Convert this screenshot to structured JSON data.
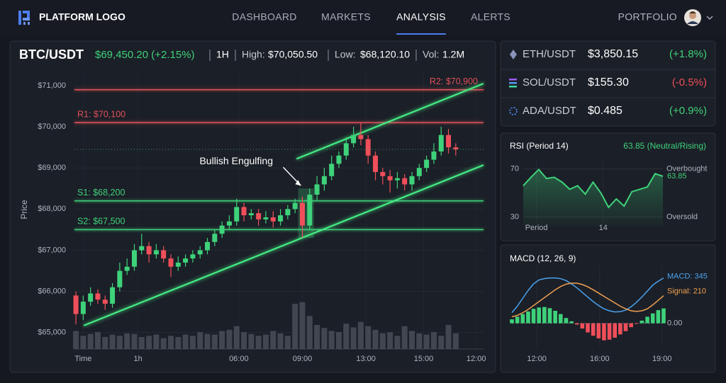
{
  "nav": {
    "logo": "PLATFORM LOGO",
    "items": [
      "DASHBOARD",
      "MARKETS",
      "ANALYSIS",
      "ALERTS"
    ],
    "active_index": 2,
    "portfolio": "PORTFOLIO"
  },
  "header": {
    "pair": "BTC/USDT",
    "price": "$69,450.20 (+2.15%)",
    "interval": "1H",
    "high_label": "High:",
    "high": "$70,050.50",
    "low_label": "Low:",
    "low": "$68,120.10",
    "vol_label": "Vol:",
    "vol": "1.2M"
  },
  "tickers": [
    {
      "pair": "ETH/USDT",
      "price": "$3,850.15",
      "change": "(+1.8%)",
      "trend": "up"
    },
    {
      "pair": "SOL/USDT",
      "price": "$155.30",
      "change": "(-0.5%)",
      "trend": "down"
    },
    {
      "pair": "ADA/USDT",
      "price": "$0.485",
      "change": "(+0.9%)",
      "trend": "up"
    }
  ],
  "chart_data": [
    {
      "type": "candlestick",
      "y_label": "Price",
      "grid": true,
      "current_price_line": true,
      "up_color": "#3ed27a",
      "down_color": "#ef4f5a",
      "volume_color": "#4b505d",
      "xlim": [
        -0.2,
        55.8
      ],
      "ylim": [
        64600,
        71360
      ],
      "volume_ylim": [
        0,
        100
      ],
      "xticks": [
        {
          "value": 1,
          "label": "Time"
        },
        {
          "value": 8.5,
          "label": "1h"
        },
        {
          "value": 22.3,
          "label": "06:00"
        },
        {
          "value": 31,
          "label": "09:00"
        },
        {
          "value": 39.7,
          "label": "13:00"
        },
        {
          "value": 47.6,
          "label": "15:00"
        },
        {
          "value": 54.8,
          "label": "12:00"
        }
      ],
      "yticks": [
        {
          "value": 65000,
          "label": "$65,000"
        },
        {
          "value": 66000,
          "label": "$66,000"
        },
        {
          "value": 67000,
          "label": "$67,000"
        },
        {
          "value": 68000,
          "label": "$68,000"
        },
        {
          "value": 69000,
          "label": "$69,000"
        },
        {
          "value": 70000,
          "label": "$70,000"
        },
        {
          "value": 71000,
          "label": "$71,000"
        }
      ],
      "open": [
        65900,
        65450,
        65750,
        65950,
        65800,
        65700,
        66100,
        66500,
        66600,
        67000,
        67100,
        66900,
        67000,
        66800,
        66600,
        66700,
        66800,
        66900,
        67000,
        67200,
        67400,
        67600,
        67700,
        68050,
        67850,
        67900,
        67750,
        67800,
        67700,
        67850,
        68000,
        68150,
        67600,
        68350,
        68600,
        68800,
        69100,
        69300,
        69600,
        69800,
        69700,
        69300,
        68900,
        68800,
        68700,
        68750,
        68600,
        68800,
        69000,
        69200,
        69400,
        69800,
        69500
      ],
      "high": [
        66000,
        65900,
        66100,
        66050,
        65900,
        66200,
        66700,
        66800,
        67150,
        67400,
        67200,
        67150,
        67100,
        66900,
        66850,
        66900,
        67000,
        67100,
        67300,
        67500,
        67700,
        67850,
        68250,
        68150,
        68000,
        68000,
        67950,
        67950,
        68000,
        68100,
        68250,
        68300,
        68500,
        68800,
        69000,
        69300,
        69400,
        69750,
        70000,
        70100,
        69800,
        69400,
        69000,
        68950,
        68900,
        68850,
        68900,
        69100,
        69300,
        69600,
        70000,
        69950,
        69600
      ],
      "low": [
        65200,
        65300,
        65650,
        65700,
        65550,
        65600,
        66000,
        66400,
        66500,
        66900,
        66700,
        66800,
        66700,
        66350,
        66500,
        66600,
        66700,
        66800,
        66900,
        67100,
        67300,
        67500,
        67600,
        67700,
        67750,
        67600,
        67650,
        67550,
        67600,
        67750,
        67900,
        67300,
        67500,
        68200,
        68450,
        68700,
        69000,
        69200,
        69500,
        69550,
        69100,
        68700,
        68600,
        68400,
        68500,
        68450,
        68450,
        68700,
        68900,
        69100,
        69300,
        69350,
        69300
      ],
      "close": [
        65450,
        65750,
        65950,
        65800,
        65700,
        66100,
        66500,
        66600,
        67000,
        67100,
        66900,
        67000,
        66800,
        66600,
        66700,
        66800,
        66900,
        67000,
        67200,
        67400,
        67600,
        67700,
        68050,
        67850,
        67900,
        67750,
        67800,
        67700,
        67850,
        68000,
        68150,
        67600,
        68350,
        68600,
        68800,
        69100,
        69300,
        69600,
        69800,
        69700,
        69300,
        68900,
        68800,
        68700,
        68750,
        68600,
        68800,
        69000,
        69200,
        69400,
        69800,
        69500,
        69450
      ],
      "volume": [
        30,
        22,
        25,
        28,
        20,
        24,
        22,
        26,
        25,
        20,
        22,
        24,
        18,
        22,
        20,
        24,
        22,
        28,
        25,
        24,
        30,
        32,
        38,
        28,
        25,
        22,
        24,
        30,
        26,
        22,
        75,
        78,
        55,
        40,
        35,
        30,
        28,
        42,
        36,
        45,
        38,
        32,
        26,
        28,
        22,
        38,
        30,
        26,
        24,
        28,
        22,
        40,
        26
      ],
      "levels": [
        {
          "label": "R2: $70,900",
          "value": 70900,
          "color": "#e0505a",
          "label_side": "right"
        },
        {
          "label": "R1: $70,100",
          "value": 70100,
          "color": "#e0505a",
          "label_side": "left"
        },
        {
          "label": "S1: $68,200",
          "value": 68200,
          "color": "#3ed27a",
          "label_side": "left"
        },
        {
          "label": "S2: $67,500",
          "value": 67500,
          "color": "#3ed27a",
          "label_side": "left"
        }
      ],
      "trendlines": [
        {
          "x": [
            1.07,
            55.8
          ],
          "y": [
            65170,
            69070
          ],
          "color": "#45ec84"
        },
        {
          "x": [
            30.2,
            55.8
          ],
          "y": [
            69220,
            71050
          ],
          "color": "#45ec84"
        }
      ],
      "annotation": {
        "text": "Bullish Engulfing",
        "candles": [
          31,
          32
        ]
      }
    },
    {
      "type": "line",
      "title": "RSI (Period 14)",
      "value_text": "63.85 (Neutral/Rising)",
      "color": "#3ed27a",
      "values": [
        56,
        63,
        69.5,
        62,
        63,
        59,
        53,
        56,
        49,
        59,
        50,
        38,
        45,
        39,
        51,
        53,
        55,
        66,
        63.85
      ],
      "last_label": "63.85",
      "xlim": [
        0,
        18
      ],
      "ylim": [
        22,
        78
      ],
      "yticks": [
        70,
        30
      ],
      "ytick_notes": [
        "Overbought",
        "Oversold"
      ],
      "xticks": [
        {
          "value": 1.7,
          "label": "Period"
        },
        {
          "value": 10.3,
          "label": "14"
        }
      ]
    },
    {
      "type": "macd",
      "title": "MACD (12, 26, 9)",
      "series": [
        {
          "label": "MACD: 345",
          "color": "#4aa3f0",
          "values": [
            81,
            130,
            190,
            250,
            300,
            330,
            340,
            345,
            345,
            340,
            325,
            300,
            270,
            235,
            200,
            165,
            135,
            110,
            95,
            86,
            88,
            100,
            125,
            160,
            200,
            245,
            290,
            320,
            345
          ]
        },
        {
          "label": "Signal: 210",
          "color": "#f0a050",
          "values": [
            49,
            60,
            80,
            105,
            135,
            165,
            195,
            225,
            255,
            280,
            298,
            305,
            305,
            295,
            278,
            255,
            230,
            205,
            180,
            155,
            130,
            110,
            95,
            90,
            95,
            110,
            140,
            175,
            210
          ]
        }
      ],
      "histogram": {
        "values": [
          30,
          50,
          70,
          90,
          110,
          120,
          124,
          115,
          95,
          70,
          40,
          15,
          -10,
          -40,
          -70,
          -95,
          -115,
          -130,
          -125,
          -110,
          -85,
          -60,
          -30,
          -5,
          20,
          50,
          75,
          100,
          113
        ],
        "up_color": "#3ed27a",
        "down_color": "#ef4f5a"
      },
      "xlim": [
        0,
        28
      ],
      "ylim": [
        -180,
        440
      ],
      "yticks": [
        {
          "value": 0,
          "label": "0.00"
        }
      ],
      "xticks": [
        {
          "value": 4.6,
          "label": "12:00"
        },
        {
          "value": 16.2,
          "label": "16:00"
        },
        {
          "value": 27.7,
          "label": "19:00"
        }
      ]
    }
  ]
}
